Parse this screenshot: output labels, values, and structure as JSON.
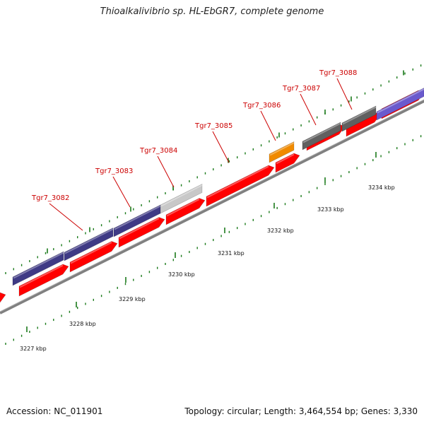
{
  "title": "Thioalkalivibrio sp. HL-EbGR7, complete genome",
  "footer": {
    "accession": "Accession: NC_011901",
    "topology": "Topology: circular; Length: 3,464,554 bp; Genes: 3,330"
  },
  "colors": {
    "backbone": "#808080",
    "cds": "#ff0000",
    "gene_dark_blue": "#3f3a85",
    "gene_light_gray": "#c8c8c8",
    "gene_orange": "#f08a00",
    "gene_dark_gray": "#606060",
    "gene_lavender": "#6a5acd",
    "tick": "#1a7a1a",
    "label": "#cc0000"
  },
  "scale_labels": [
    "3227 kbp",
    "3228 kbp",
    "3229 kbp",
    "3230 kbp",
    "3231 kbp",
    "3232 kbp",
    "3233 kbp",
    "3234 kbp"
  ],
  "gene_labels": [
    "Tgr7_3082",
    "Tgr7_3083",
    "Tgr7_3084",
    "Tgr7_3085",
    "Tgr7_3086",
    "Tgr7_3087",
    "Tgr7_3088"
  ]
}
